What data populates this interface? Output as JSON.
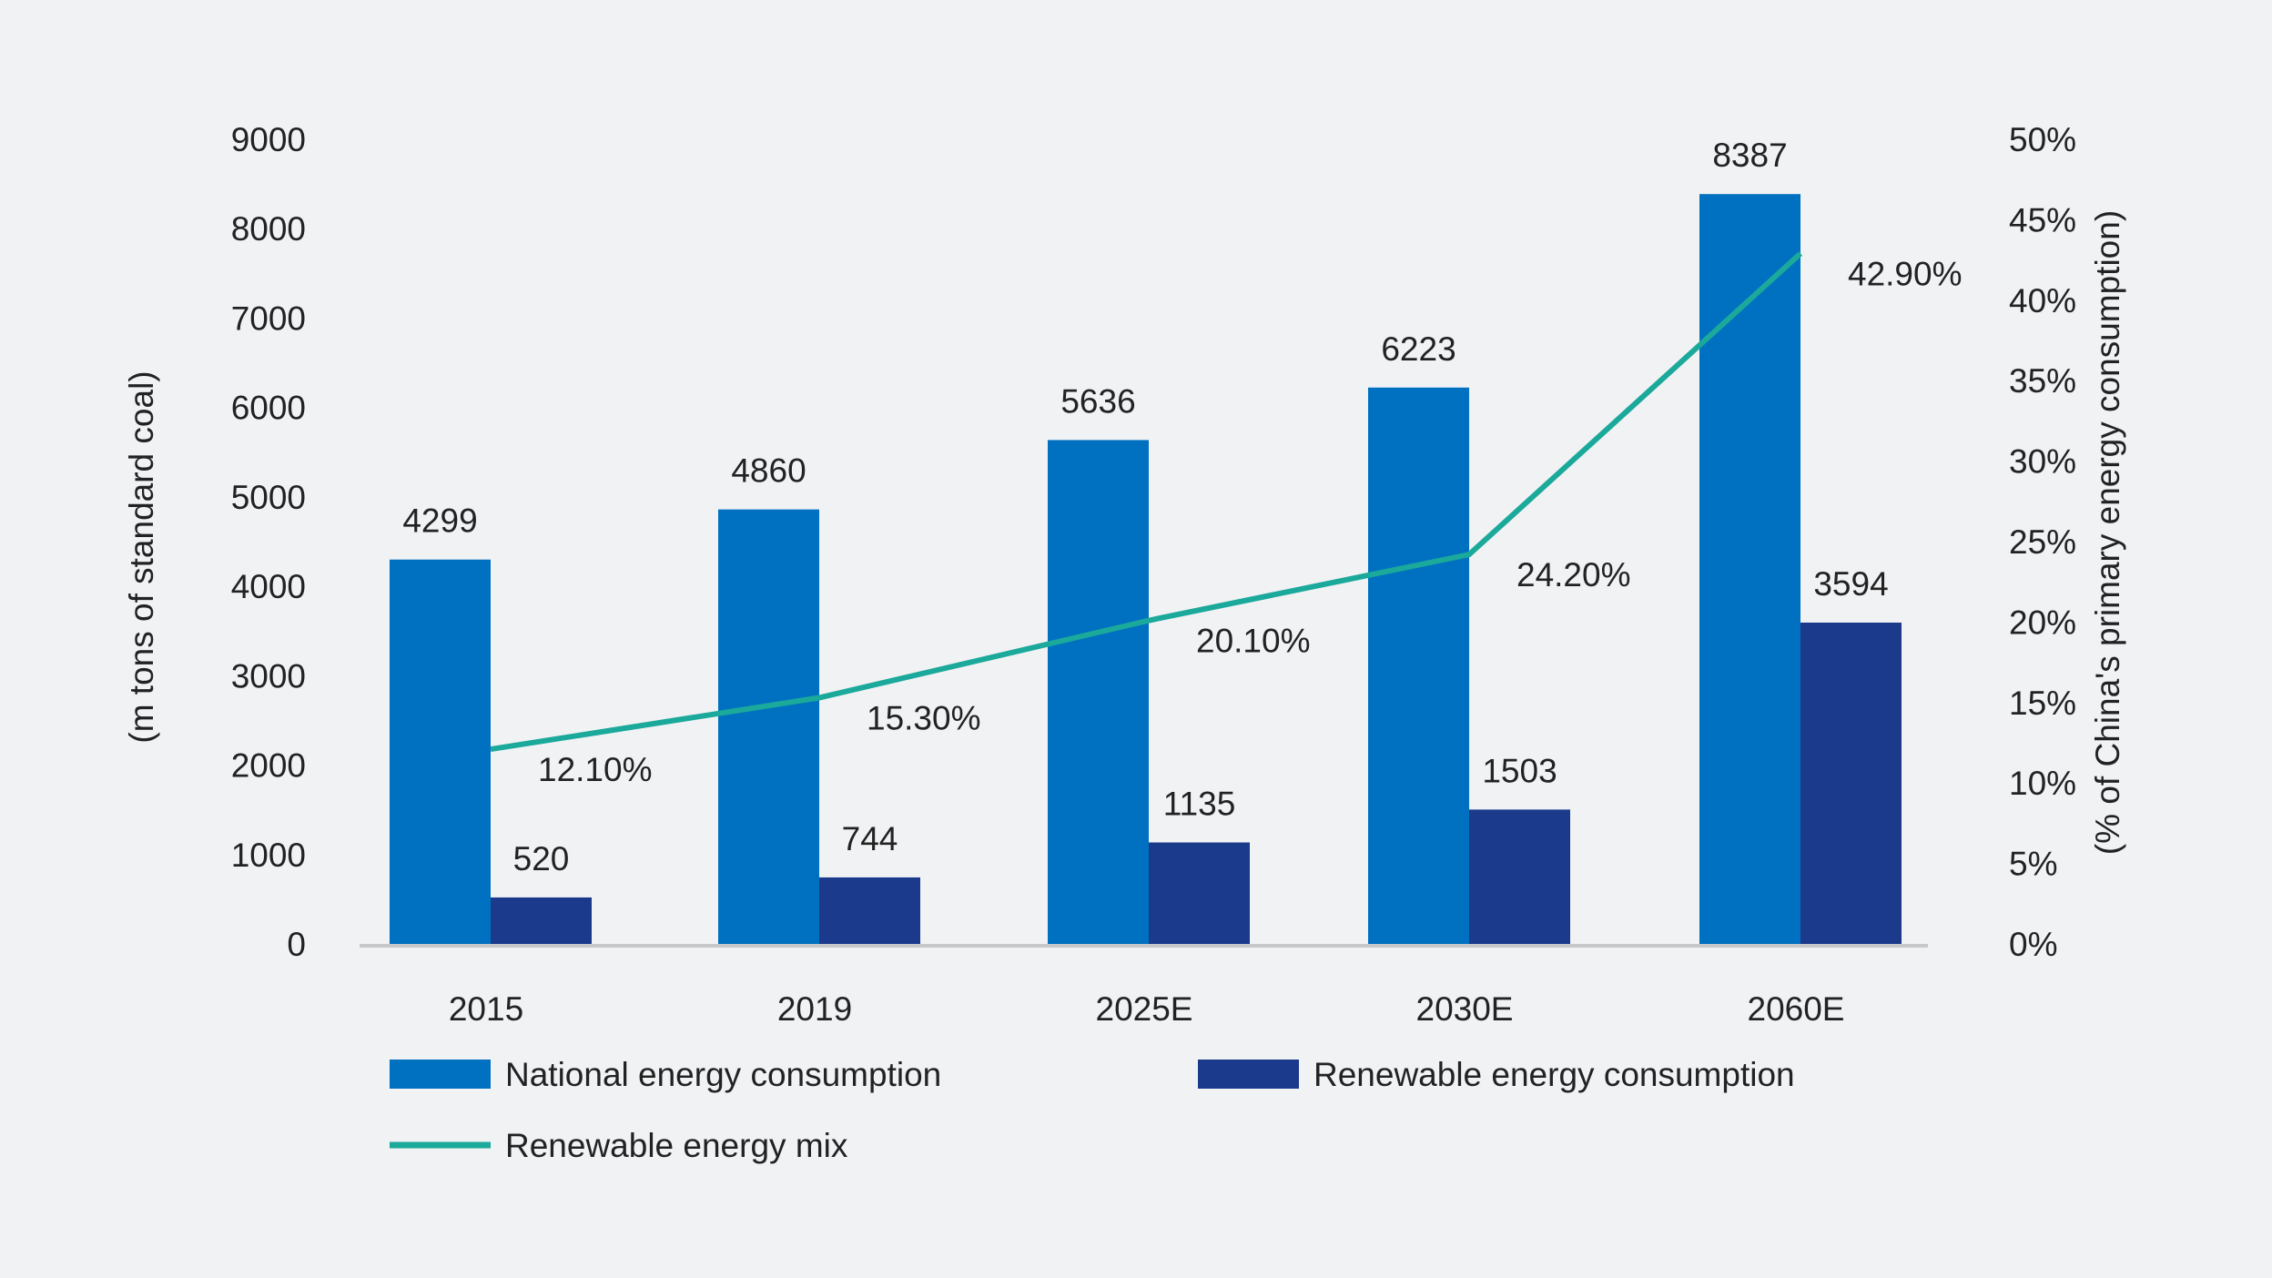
{
  "chart_data": {
    "type": "bar",
    "categories": [
      "2015",
      "2019",
      "2025E",
      "2030E",
      "2060E"
    ],
    "series": [
      {
        "name": "National energy consumption",
        "type": "bar",
        "axis": "left",
        "color": "#0070c0",
        "values": [
          4299,
          4860,
          5636,
          6223,
          8387
        ],
        "labels": [
          "4299",
          "4860",
          "5636",
          "6223",
          "8387"
        ]
      },
      {
        "name": "Renewable energy consumption",
        "type": "bar",
        "axis": "left",
        "color": "#1b3a8c",
        "values": [
          520,
          744,
          1135,
          1503,
          3594
        ],
        "labels": [
          "520",
          "744",
          "1135",
          "1503",
          "3594"
        ]
      },
      {
        "name": "Renewable energy mix",
        "type": "line",
        "axis": "right",
        "color": "#1aa99a",
        "values": [
          12.1,
          15.3,
          20.1,
          24.2,
          42.9
        ],
        "labels": [
          "12.10%",
          "15.30%",
          "20.10%",
          "24.20%",
          "42.90%"
        ]
      }
    ],
    "ylabel": "(m tons of standard coal)",
    "y2label": "(% of China's primary energy consumption)",
    "ylim": [
      0,
      9000
    ],
    "y2lim": [
      0,
      50
    ],
    "yticks": [
      "0",
      "1000",
      "2000",
      "3000",
      "4000",
      "5000",
      "6000",
      "7000",
      "8000",
      "9000"
    ],
    "y2ticks": [
      "0%",
      "5%",
      "10%",
      "15%",
      "20%",
      "25%",
      "30%",
      "35%",
      "40%",
      "45%",
      "50%"
    ],
    "grid": false,
    "legend_position": "bottom"
  }
}
